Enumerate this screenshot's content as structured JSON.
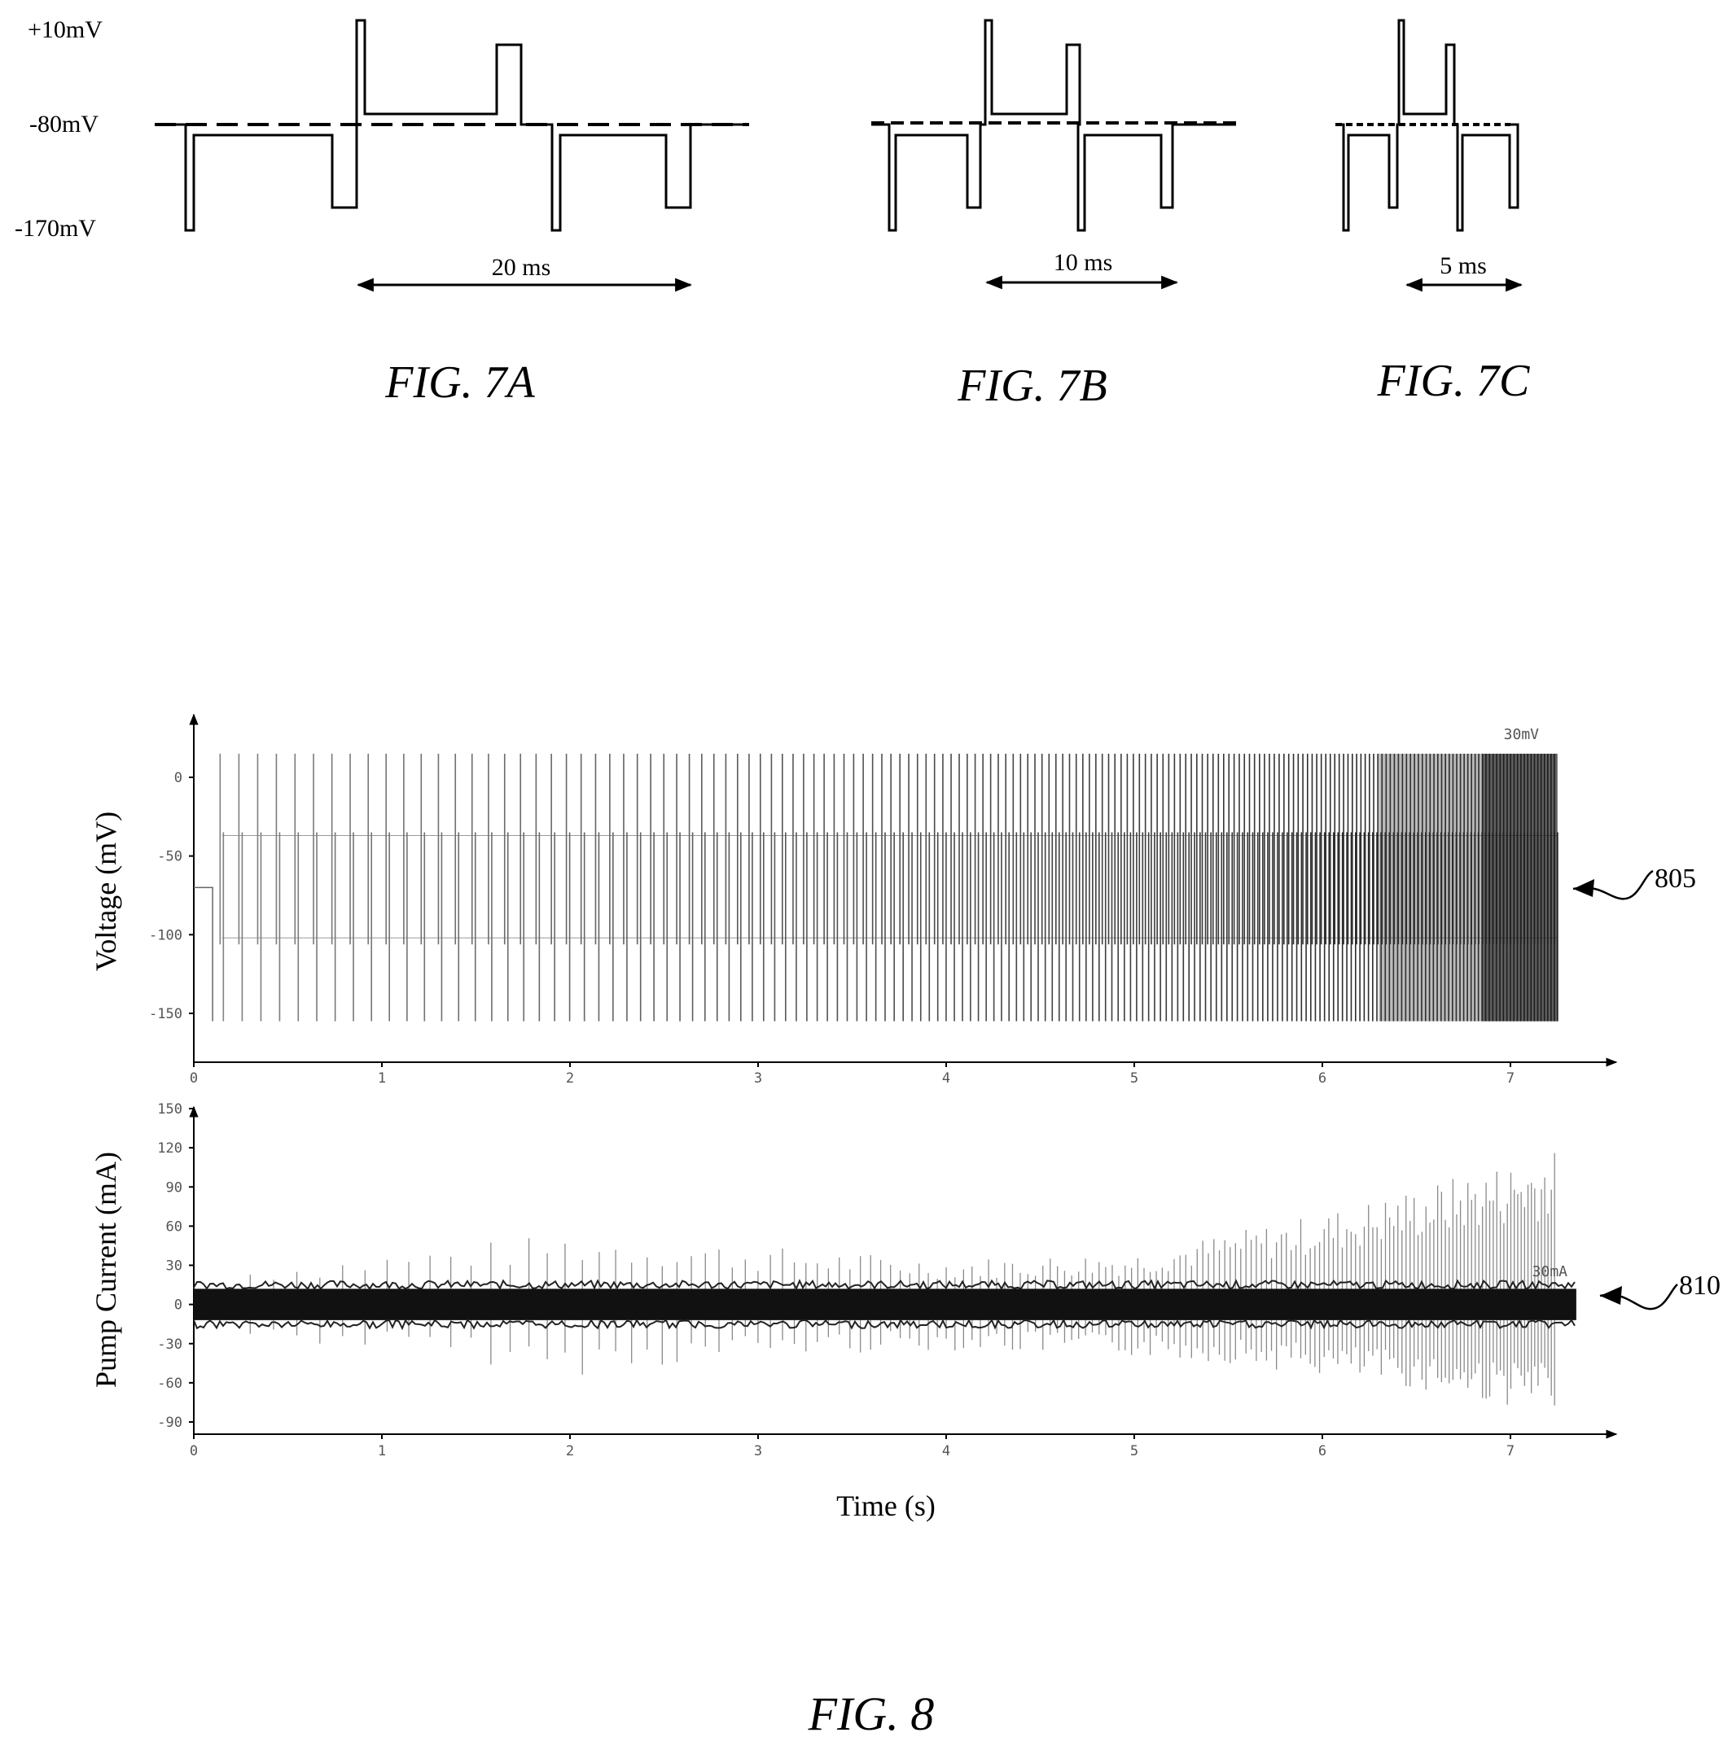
{
  "fig7": {
    "level_labels": [
      "+10mV",
      "-80mV",
      "-170mV"
    ],
    "panels": [
      {
        "id": "7A",
        "caption": "FIG. 7A",
        "period_label": "20 ms"
      },
      {
        "id": "7B",
        "caption": "FIG. 7B",
        "period_label": "10 ms"
      },
      {
        "id": "7C",
        "caption": "FIG. 7C",
        "period_label": "5 ms"
      }
    ]
  },
  "fig8": {
    "caption": "FIG. 8",
    "xlabel": "Time (s)",
    "voltage_panel": {
      "ylabel": "Voltage (mV)",
      "yticks": [
        "0",
        "-50",
        "-100",
        "-150"
      ],
      "xticks": [
        "0",
        "1",
        "2",
        "3",
        "4",
        "5",
        "6",
        "7"
      ],
      "corner_label": "30mV",
      "ref": "805"
    },
    "current_panel": {
      "ylabel": "Pump Current (mA)",
      "yticks": [
        "150",
        "120",
        "90",
        "60",
        "30",
        "0",
        "-30",
        "-60",
        "-90"
      ],
      "xticks": [
        "0",
        "1",
        "2",
        "3",
        "4",
        "5",
        "6",
        "7"
      ],
      "corner_label": "30mA",
      "ref": "810"
    }
  },
  "chart_data": [
    {
      "type": "line",
      "panel": "FIG. 7A",
      "levels_mV": [
        10,
        -80,
        -170
      ],
      "period_ms": 20,
      "x_ms": [
        0,
        1,
        1,
        1.5,
        1.5,
        8.0,
        8.0,
        9.0,
        9.0,
        9.5,
        9.5,
        10.0,
        10.0,
        17.0,
        17.0,
        18.0,
        18.0,
        19.5,
        19.5,
        20.0,
        20.0,
        20.5,
        20.5,
        27.0,
        27.0,
        28.0,
        28.0,
        29.5
      ],
      "y_mV": [
        -80,
        -80,
        -170,
        -170,
        -90,
        -90,
        -150,
        -150,
        -80,
        -80,
        10,
        10,
        -70,
        -70,
        -10,
        -10,
        -80,
        -80,
        -170,
        -170,
        -90,
        -90,
        -150,
        -150,
        -80,
        -80,
        -80,
        -80
      ]
    },
    {
      "type": "line",
      "panel": "FIG. 7B",
      "levels_mV": [
        10,
        -80,
        -170
      ],
      "period_ms": 10
    },
    {
      "type": "line",
      "panel": "FIG. 7C",
      "levels_mV": [
        10,
        -80,
        -170
      ],
      "period_ms": 5
    },
    {
      "type": "line",
      "panel": "FIG. 8 voltage",
      "xlabel": "",
      "ylabel": "Voltage (mV)",
      "xlim": [
        0,
        7.4
      ],
      "ylim": [
        -165,
        20
      ],
      "pulse_levels_mV": [
        15,
        -37,
        -102,
        -155
      ],
      "baseline_mV": -70
    },
    {
      "type": "line",
      "panel": "FIG. 8 current",
      "xlabel": "Time (s)",
      "ylabel": "Pump Current (mA)",
      "xlim": [
        0,
        7.4
      ],
      "ylim": [
        -95,
        150
      ],
      "noise_band_mA": [
        -12,
        12
      ],
      "x": [
        0,
        1,
        2,
        3,
        4,
        5,
        5.5,
        6,
        6.5,
        7,
        7.2
      ],
      "peak_envelope_mA": [
        25,
        40,
        55,
        45,
        35,
        40,
        55,
        70,
        90,
        110,
        118
      ],
      "trough_envelope_mA": [
        -25,
        -35,
        -55,
        -40,
        -35,
        -40,
        -45,
        -55,
        -65,
        -78,
        -82
      ]
    }
  ]
}
